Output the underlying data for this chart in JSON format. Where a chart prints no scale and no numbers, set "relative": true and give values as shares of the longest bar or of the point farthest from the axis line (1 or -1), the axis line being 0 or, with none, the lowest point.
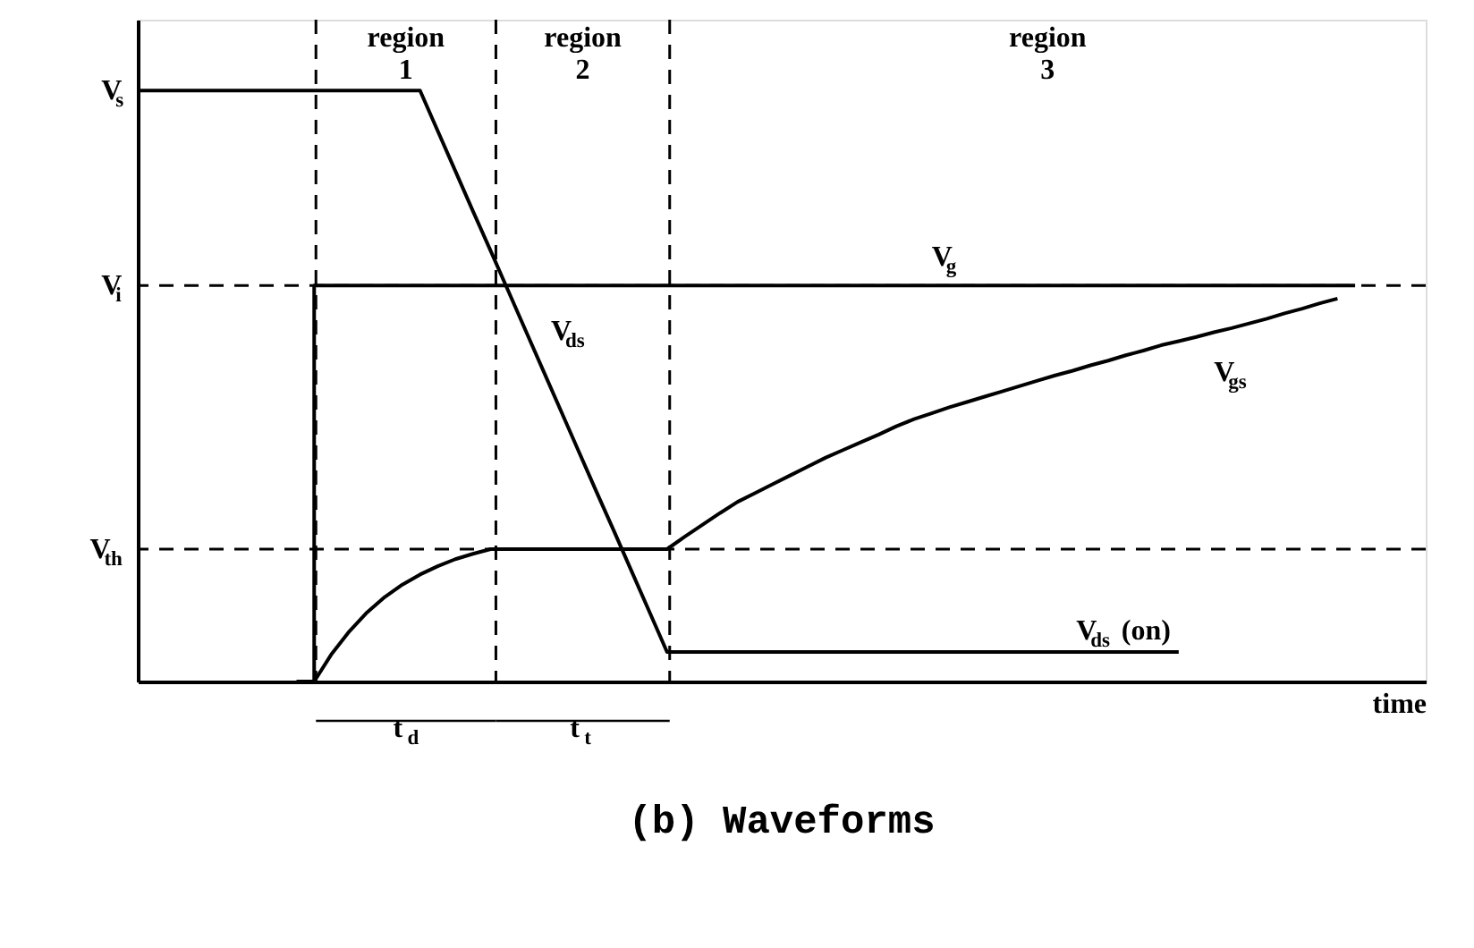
{
  "chart_data": {
    "type": "line",
    "title": "(b) Waveforms",
    "xlabel": "time",
    "relative": true,
    "tick_labels": false,
    "grid": false,
    "legend": false,
    "line_style": "solid",
    "marker": "none",
    "categories": [
      null,
      null,
      null,
      null,
      null,
      null,
      null,
      null,
      null,
      null,
      null,
      null,
      null,
      null,
      null,
      null,
      null,
      null,
      null,
      null,
      null,
      null,
      null,
      null,
      null,
      null,
      null,
      null,
      null,
      null,
      null,
      null,
      null,
      null,
      null,
      null,
      null,
      null,
      null,
      null,
      null,
      null,
      null,
      null,
      null,
      null,
      null,
      null,
      null,
      null,
      null,
      null,
      null,
      null,
      null,
      null,
      null,
      null,
      null,
      null,
      null,
      null,
      null,
      null,
      null,
      null,
      null,
      null,
      null,
      null,
      null,
      null,
      null,
      null
    ],
    "series": [
      {
        "name": "V$_{ds}$",
        "color": "#000000",
        "values": [
          1,
          1,
          1,
          1,
          1,
          1,
          1,
          1,
          1,
          1,
          1,
          1,
          1,
          1,
          1,
          1,
          1,
          0.932,
          0.864,
          0.796,
          0.729,
          0.661,
          0.593,
          0.525,
          0.457,
          0.389,
          0.321,
          0.254,
          0.186,
          0.118,
          0.05,
          0.05,
          0.05,
          0.05,
          0.05,
          0.05,
          0.05,
          0.05,
          0.05,
          0.05,
          0.05,
          0.05,
          0.05,
          0.05,
          0.05,
          0.05,
          0.05,
          0.05,
          0.05,
          0.05,
          0.05,
          0.05,
          0.05,
          0.05,
          0.05,
          0.05,
          0.05,
          0.05,
          0.05,
          0.05,
          null,
          null,
          null,
          null,
          null,
          null,
          null,
          null,
          null,
          null,
          null,
          null,
          null,
          null
        ]
      },
      {
        "name": "V$_{g}$",
        "color": "#000000",
        "type": "step",
        "values": [
          null,
          null,
          null,
          null,
          null,
          null,
          null,
          null,
          null,
          0,
          0.67,
          0.67,
          0.67,
          0.67,
          0.67,
          0.67,
          0.67,
          0.67,
          0.67,
          0.67,
          0.67,
          0.67,
          0.67,
          0.67,
          0.67,
          0.67,
          0.67,
          0.67,
          0.67,
          0.67,
          0.67,
          0.67,
          0.67,
          0.67,
          0.67,
          0.67,
          0.67,
          0.67,
          0.67,
          0.67,
          0.67,
          0.67,
          0.67,
          0.67,
          0.67,
          0.67,
          0.67,
          0.67,
          0.67,
          0.67,
          0.67,
          0.67,
          0.67,
          0.67,
          0.67,
          0.67,
          0.67,
          0.67,
          0.67,
          0.67,
          0.67,
          0.67,
          0.67,
          0.67,
          0.67,
          0.67,
          0.67,
          0.67,
          0.67,
          0.67,
          null,
          null,
          null,
          null
        ]
      },
      {
        "name": "V$_{gs}$",
        "color": "#000000",
        "values": [
          null,
          null,
          null,
          null,
          null,
          null,
          null,
          null,
          null,
          null,
          0,
          0.047,
          0.085,
          0.117,
          0.143,
          0.164,
          0.181,
          0.195,
          0.207,
          0.216,
          0.224,
          0.224,
          0.224,
          0.224,
          0.224,
          0.224,
          0.224,
          0.224,
          0.224,
          0.224,
          0.224,
          0.245,
          0.265,
          0.285,
          0.304,
          0.319,
          0.334,
          0.349,
          0.364,
          0.379,
          0.392,
          0.405,
          0.418,
          0.432,
          0.444,
          0.454,
          0.464,
          0.473,
          0.482,
          0.491,
          0.5,
          0.509,
          0.518,
          0.526,
          0.535,
          0.543,
          0.552,
          0.56,
          0.569,
          0.576,
          0.583,
          0.591,
          0.598,
          0.606,
          0.614,
          0.623,
          0.631,
          0.64,
          0.648,
          null,
          null,
          null,
          null,
          null
        ]
      }
    ],
    "ref_lines": [
      {
        "axis": "y",
        "value": 0.67,
        "label": "V$_{i}$",
        "color": "#000000",
        "line_style": "dashed"
      },
      {
        "axis": "y",
        "value": 0.224,
        "label": "V$_{th}$",
        "color": "#000000",
        "line_style": "dashed"
      }
    ],
    "annotations": [
      "region 1",
      "region 2",
      "region 3",
      "V$_{s}$",
      "V$_{ds}$ (on)",
      "t$_{d}$",
      "t$_{t}$"
    ]
  }
}
